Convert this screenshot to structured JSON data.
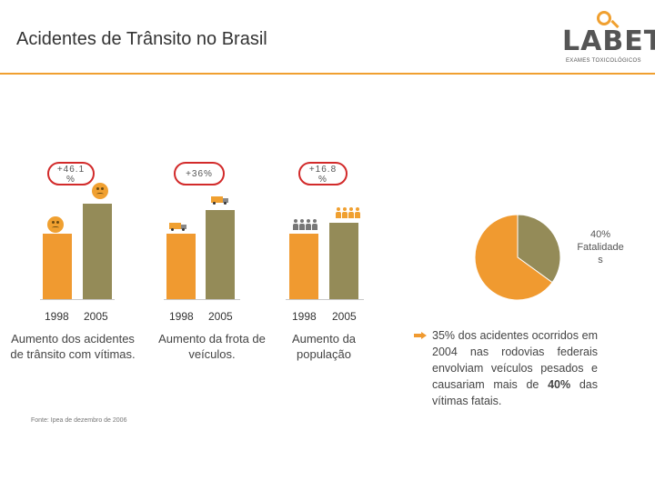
{
  "header": {
    "title": "Acidentes de Trânsito no Brasil",
    "logo_text": "LABET",
    "logo_subtitle": "EXAMES TOXICOLÓGICOS"
  },
  "colors": {
    "accent": "#f09a30",
    "olive": "#948b58",
    "badge_border": "#d22a2a"
  },
  "chart_data": [
    {
      "type": "bar",
      "categories": [
        "1998",
        "2005"
      ],
      "values": [
        100,
        146.1
      ],
      "annotation": "+46.1 %",
      "caption": "Aumento dos acidentes de trânsito com vítimas."
    },
    {
      "type": "bar",
      "categories": [
        "1998",
        "2005"
      ],
      "values": [
        100,
        136
      ],
      "annotation": "+36%",
      "caption": "Aumento da frota de veículos."
    },
    {
      "type": "bar",
      "categories": [
        "1998",
        "2005"
      ],
      "values": [
        100,
        116.8
      ],
      "annotation": "+16.8 %",
      "caption": "Aumento da população"
    },
    {
      "type": "pie",
      "slices": [
        {
          "label": "40% Fatalidades",
          "value": 35
        },
        {
          "label": "",
          "value": 65
        }
      ]
    }
  ],
  "pie_label": {
    "line1": "40%",
    "line2": "Fatalidade",
    "line3": "s"
  },
  "badges": {
    "chart1": {
      "line1": "+46.1",
      "line2": "%"
    },
    "chart2": {
      "line1": "+36%"
    },
    "chart3": {
      "line1": "+16.8",
      "line2": "%"
    }
  },
  "bullet": {
    "prefix": "35%",
    "text": " dos acidentes ocorridos em 2004 nas rodovias federais envolviam veículos pesados e causariam mais de ",
    "highlight": "40%",
    "suffix": " das vítimas fatais."
  },
  "source": "Fonte: Ipea de dezembro de 2006"
}
